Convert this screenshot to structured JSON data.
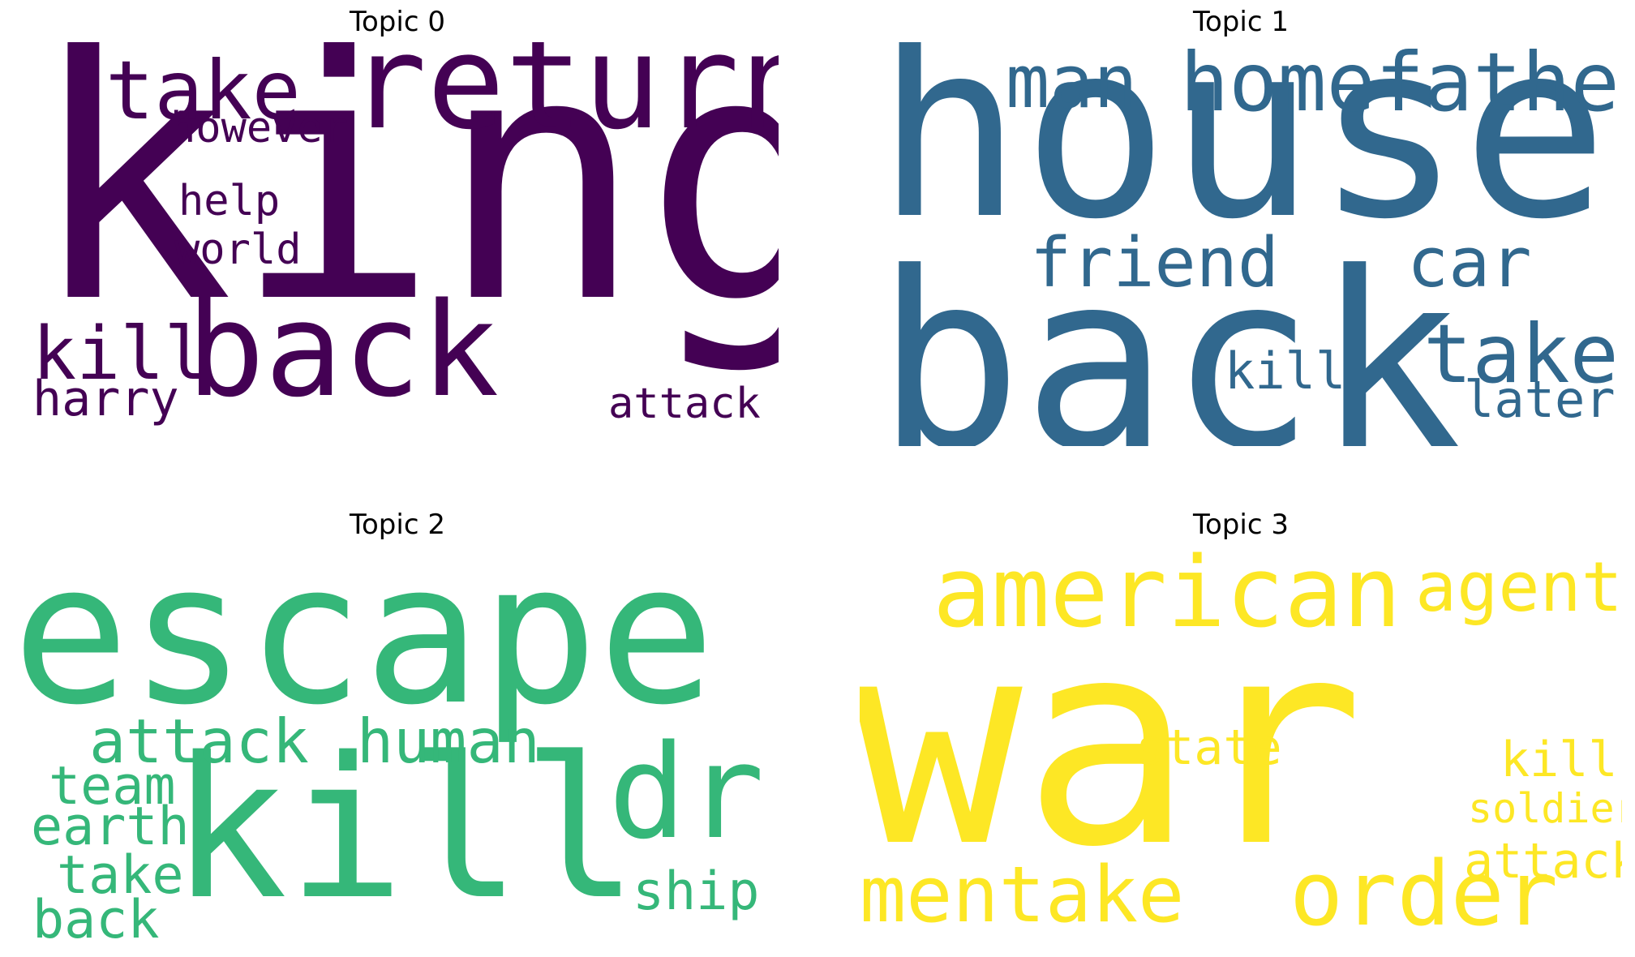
{
  "chart_data": [
    {
      "type": "wordcloud",
      "title": "Topic 0",
      "color": "#440154",
      "words": [
        {
          "text": "king",
          "weight": 100
        },
        {
          "text": "return",
          "weight": 40
        },
        {
          "text": "back",
          "weight": 38
        },
        {
          "text": "take",
          "weight": 24
        },
        {
          "text": "kill",
          "weight": 18
        },
        {
          "text": "harry",
          "weight": 12
        },
        {
          "text": "however",
          "weight": 11
        },
        {
          "text": "help",
          "weight": 11
        },
        {
          "text": "world",
          "weight": 11
        },
        {
          "text": "attack",
          "weight": 11
        }
      ]
    },
    {
      "type": "wordcloud",
      "title": "Topic 1",
      "color": "#31688e",
      "words": [
        {
          "text": "house",
          "weight": 100
        },
        {
          "text": "back",
          "weight": 90
        },
        {
          "text": "homefather",
          "weight": 30
        },
        {
          "text": "man",
          "weight": 27
        },
        {
          "text": "friend",
          "weight": 25
        },
        {
          "text": "car",
          "weight": 25
        },
        {
          "text": "take",
          "weight": 24
        },
        {
          "text": "kill",
          "weight": 18
        },
        {
          "text": "later",
          "weight": 18
        }
      ]
    },
    {
      "type": "wordcloud",
      "title": "Topic 2",
      "color": "#35b779",
      "words": [
        {
          "text": "escape",
          "weight": 100
        },
        {
          "text": "kill",
          "weight": 95
        },
        {
          "text": "dr",
          "weight": 55
        },
        {
          "text": "attack",
          "weight": 22
        },
        {
          "text": "human",
          "weight": 22
        },
        {
          "text": "team",
          "weight": 18
        },
        {
          "text": "earth",
          "weight": 18
        },
        {
          "text": "take",
          "weight": 18
        },
        {
          "text": "back",
          "weight": 18
        },
        {
          "text": "ship",
          "weight": 18
        }
      ]
    },
    {
      "type": "wordcloud",
      "title": "Topic 3",
      "color": "#fde725",
      "words": [
        {
          "text": "war",
          "weight": 100
        },
        {
          "text": "american",
          "weight": 30
        },
        {
          "text": "agent",
          "weight": 24
        },
        {
          "text": "order",
          "weight": 26
        },
        {
          "text": "mentake",
          "weight": 26
        },
        {
          "text": "state",
          "weight": 15
        },
        {
          "text": "kill",
          "weight": 15
        },
        {
          "text": "soldier",
          "weight": 12
        },
        {
          "text": "attack",
          "weight": 15
        }
      ]
    }
  ]
}
